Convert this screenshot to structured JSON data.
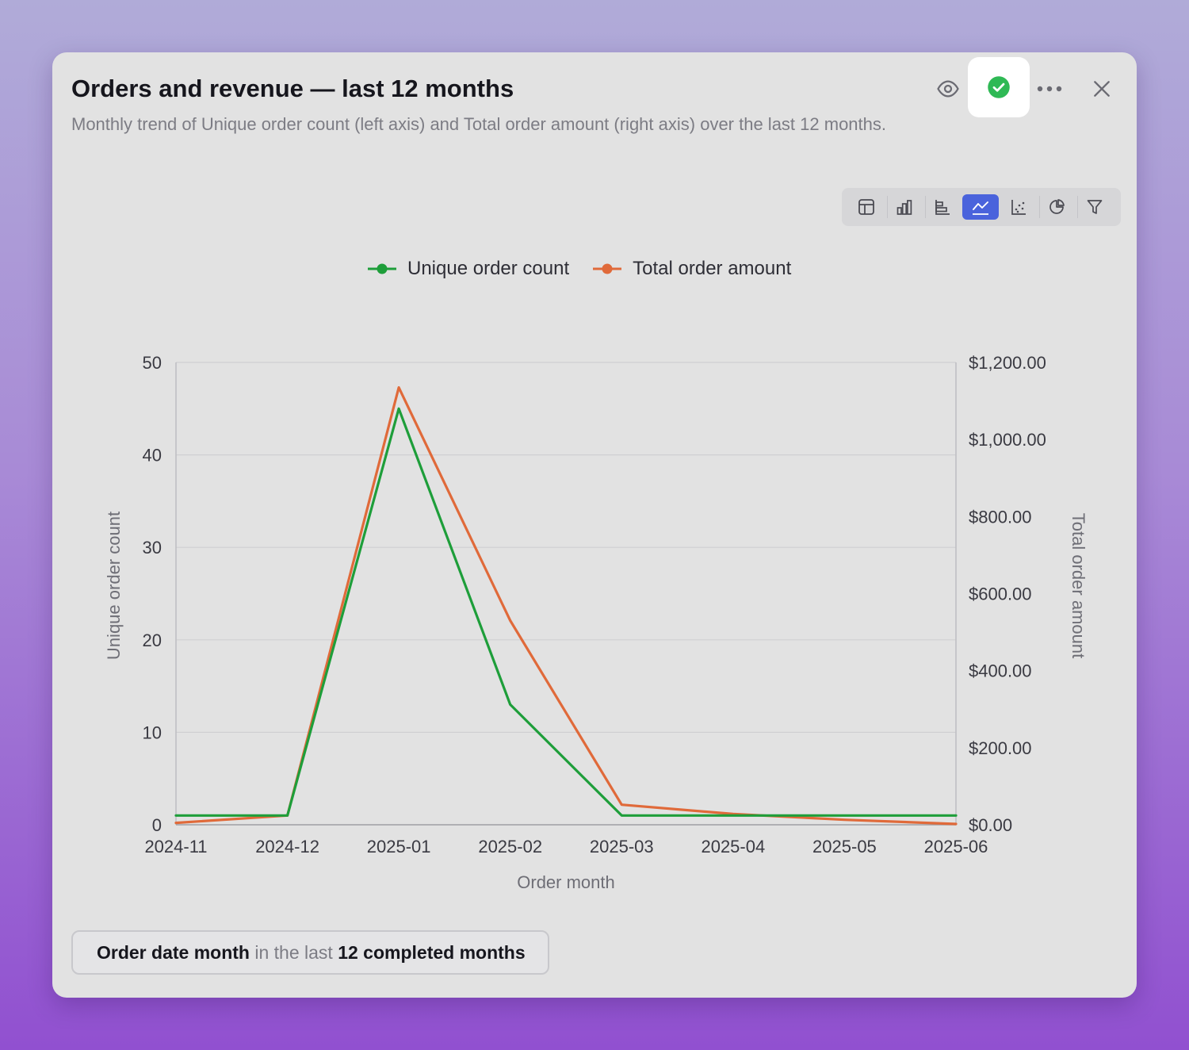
{
  "card": {
    "title": "Orders and revenue — last 12 months",
    "description": "Monthly trend of Unique order count (left axis) and Total order amount (right axis) over the last 12 months."
  },
  "header_actions": {
    "eye_icon": "eye-icon",
    "verified_icon": "check-circle-icon",
    "more_icon": "more-horizontal-icon",
    "close_icon": "close-icon",
    "verified_color": "#2fb955"
  },
  "viz_toolbar": {
    "buttons": [
      {
        "name": "table-view-button",
        "icon": "table-icon"
      },
      {
        "name": "bar-chart-button",
        "icon": "bar-chart-icon"
      },
      {
        "name": "horizontal-bar-chart-button",
        "icon": "horizontal-bar-icon"
      },
      {
        "name": "line-chart-button",
        "icon": "line-chart-icon",
        "active": true
      },
      {
        "name": "scatter-chart-button",
        "icon": "scatter-icon"
      },
      {
        "name": "pie-chart-button",
        "icon": "pie-chart-icon"
      },
      {
        "name": "filter-button",
        "icon": "filter-icon"
      }
    ],
    "active_color": "#4a63dc"
  },
  "chart_data": {
    "type": "line",
    "x": [
      "2024-11",
      "2024-12",
      "2025-01",
      "2025-02",
      "2025-03",
      "2025-04",
      "2025-05",
      "2025-06"
    ],
    "x_ticks": [
      "2024-11",
      "2024-12",
      "2025-01",
      "2025-02",
      "2025-03",
      "2025-04",
      "2025-05",
      "2025-06"
    ],
    "xlabel": "Order month",
    "series": [
      {
        "name": "Unique order count",
        "axis": "left",
        "color": "#1e9e3a",
        "values": [
          1,
          1,
          45,
          13,
          1,
          1,
          1,
          1
        ]
      },
      {
        "name": "Total order amount",
        "axis": "right",
        "color": "#e06a3a",
        "values": [
          5,
          24,
          1135,
          530,
          52,
          28,
          13,
          2
        ]
      }
    ],
    "y_left": {
      "label": "Unique order count",
      "min": 0,
      "max": 50,
      "ticks": [
        0,
        10,
        20,
        30,
        40,
        50
      ],
      "tick_labels": [
        "0",
        "10",
        "20",
        "30",
        "40",
        "50"
      ]
    },
    "y_right": {
      "label": "Total order amount",
      "min": 0,
      "max": 1200,
      "ticks": [
        0,
        200,
        400,
        600,
        800,
        1000,
        1200
      ],
      "tick_labels": [
        "$0.00",
        "$200.00",
        "$400.00",
        "$600.00",
        "$800.00",
        "$1,000.00",
        "$1,200.00"
      ]
    },
    "legend": "top-center",
    "grid": true
  },
  "filter": {
    "field": "Order date month",
    "operator": " in the last ",
    "value": "12 completed months"
  }
}
